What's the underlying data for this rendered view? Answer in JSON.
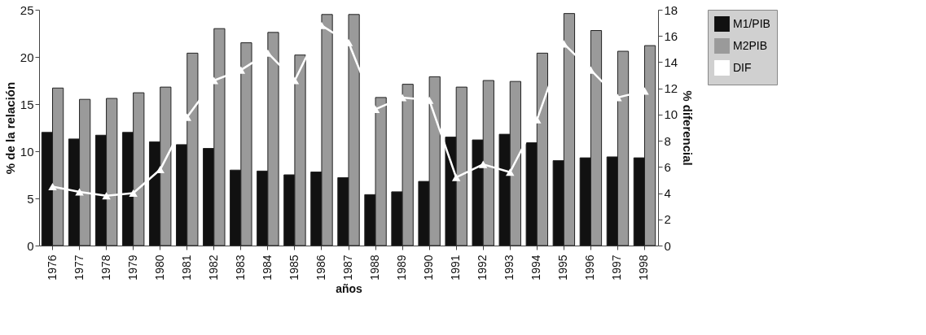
{
  "chart_data": {
    "type": "bar",
    "xlabel": "años",
    "ylabel": "% de la relación",
    "y2label": "% diferencial",
    "categories": [
      "1976",
      "1977",
      "1978",
      "1979",
      "1980",
      "1981",
      "1982",
      "1983",
      "1984",
      "1985",
      "1986",
      "1987",
      "1988",
      "1989",
      "1990",
      "1991",
      "1992",
      "1993",
      "1994",
      "1995",
      "1996",
      "1997",
      "1998"
    ],
    "series": [
      {
        "name": "M1/PIB",
        "type": "bar",
        "color": "#111111",
        "values": [
          12.0,
          11.3,
          11.7,
          12.0,
          11.0,
          10.7,
          10.3,
          8.0,
          7.9,
          7.5,
          7.8,
          7.2,
          5.4,
          5.7,
          6.8,
          11.5,
          11.2,
          11.8,
          10.9,
          9.0,
          9.3,
          9.4,
          9.3
        ]
      },
      {
        "name": "M2PIB",
        "type": "bar",
        "color": "#9a9a9a",
        "values": [
          16.7,
          15.5,
          15.6,
          16.2,
          16.8,
          20.4,
          23.0,
          21.5,
          22.6,
          20.2,
          24.5,
          24.5,
          15.7,
          17.1,
          17.9,
          16.8,
          17.5,
          17.4,
          20.4,
          24.6,
          22.8,
          20.6,
          21.2
        ]
      },
      {
        "name": "DIF",
        "type": "line",
        "axis": "y2",
        "color": "#ffffff",
        "marker": "triangle",
        "line_style": "solid",
        "values": [
          4.5,
          4.1,
          3.8,
          4.0,
          5.8,
          9.8,
          12.6,
          13.4,
          14.7,
          12.6,
          16.8,
          15.5,
          10.4,
          11.3,
          11.1,
          5.2,
          6.2,
          5.6,
          9.6,
          15.4,
          13.4,
          11.3,
          11.8
        ]
      }
    ],
    "ylim": [
      0,
      25
    ],
    "yticks": [
      0,
      5,
      10,
      15,
      20,
      25
    ],
    "y2lim": [
      0,
      18
    ],
    "y2ticks": [
      0,
      2,
      4,
      6,
      8,
      10,
      12,
      14,
      16,
      18
    ],
    "grid": false,
    "legend": "right"
  }
}
